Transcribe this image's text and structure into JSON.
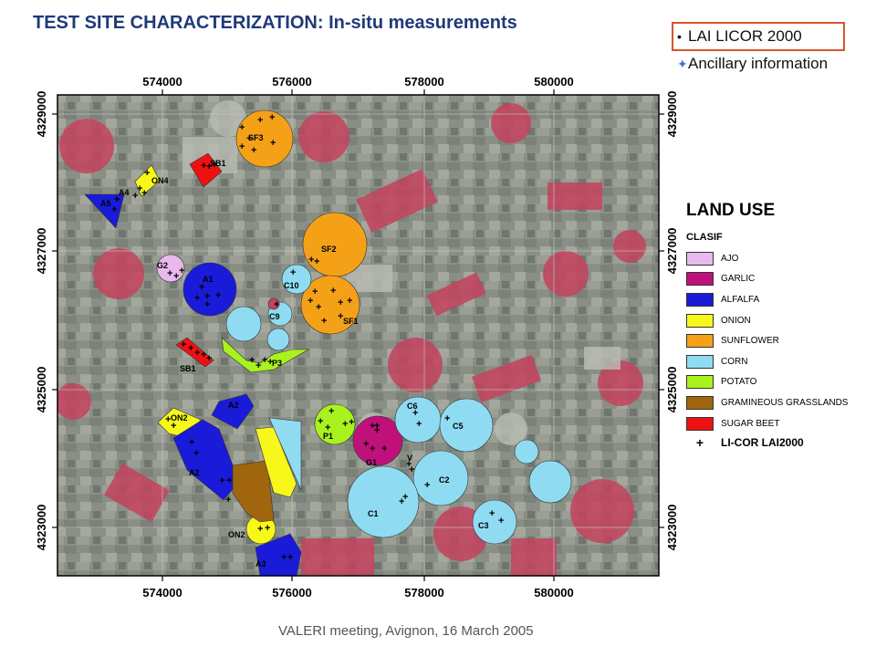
{
  "header": {
    "title": "TEST SITE CHARACTERIZATION: In-situ measurements"
  },
  "bullets": [
    {
      "text": "LAI LICOR 2000",
      "icon": "bullet-dot-icon",
      "highlighted": true
    },
    {
      "text": "Ancillary information",
      "icon": "blue-star-icon",
      "highlighted": false
    }
  ],
  "axes": {
    "x_ticks": [
      "574000",
      "576000",
      "578000",
      "580000"
    ],
    "y_ticks": [
      "4329000",
      "4327000",
      "4325000",
      "4323000"
    ]
  },
  "field_labels": [
    "SF3",
    "SB1",
    "ON4",
    "A4",
    "A5",
    "SF2",
    "G2",
    "A1",
    "C10",
    "C9",
    "SF1",
    "P3",
    "SB1",
    "A2",
    "ON2",
    "C6",
    "C5",
    "P1",
    "G1",
    "V",
    "A2",
    "C2",
    "C1",
    "C3",
    "ON2",
    "A3"
  ],
  "legend": {
    "title": "LAND USE",
    "subtitle": "CLASIF",
    "items": [
      {
        "name": "AJO",
        "color": "#e9b9ee"
      },
      {
        "name": "GARLIC",
        "color": "#c0117a"
      },
      {
        "name": "ALFALFA",
        "color": "#1a1ad9"
      },
      {
        "name": "ONION",
        "color": "#f7f71a"
      },
      {
        "name": "SUNFLOWER",
        "color": "#f5a118"
      },
      {
        "name": "CORN",
        "color": "#8fdcf2"
      },
      {
        "name": "POTATO",
        "color": "#a8f21e"
      },
      {
        "name": "GRAMINEOUS GRASSLANDS",
        "color": "#a0650d"
      },
      {
        "name": "SUGAR BEET",
        "color": "#ee1111"
      }
    ],
    "marker_label": "LI-COR LAI2000"
  },
  "footer": {
    "text": "VALERI meeting, Avignon, 16 March 2005"
  }
}
